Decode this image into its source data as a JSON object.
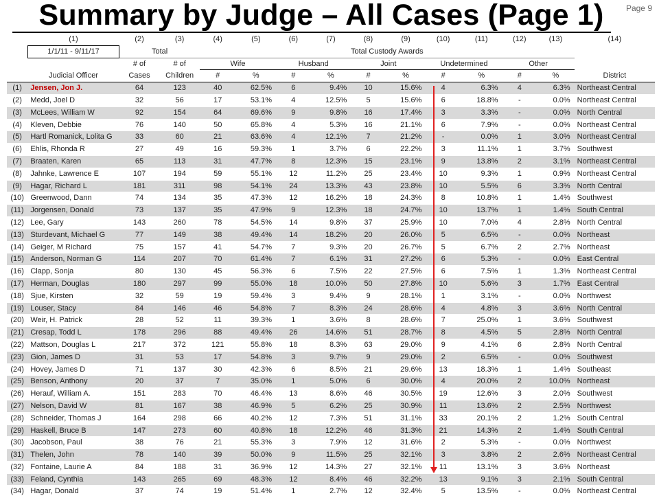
{
  "title": "Summary by Judge – All Cases (Page 1)",
  "page": "Page 9",
  "column_numbers": [
    "(1)",
    "(2)",
    "(3)",
    "(4)",
    "(5)",
    "(6)",
    "(7)",
    "(8)",
    "(9)",
    "(10)",
    "(11)",
    "(12)",
    "(13)",
    "(14)"
  ],
  "date_range": "1/1/11 - 9/11/17",
  "total_label": "Total",
  "awards_label": "Total Custody Awards",
  "groups": [
    "Wife",
    "Husband",
    "Joint",
    "Undetermined",
    "Other"
  ],
  "header": {
    "officer": "Judicial Officer",
    "cases_top": "# of",
    "cases_bottom": "Cases",
    "children_top": "# of",
    "children_bottom": "Children",
    "num": "#",
    "pct": "%",
    "district": "District"
  },
  "rows": [
    [
      "(1)",
      "Jensen, Jon J.",
      "64",
      "123",
      "40",
      "62.5%",
      "6",
      "9.4%",
      "10",
      "15.6%",
      "4",
      "6.3%",
      "4",
      "6.3%",
      "Northeast Central"
    ],
    [
      "(2)",
      "Medd, Joel D",
      "32",
      "56",
      "17",
      "53.1%",
      "4",
      "12.5%",
      "5",
      "15.6%",
      "6",
      "18.8%",
      "-",
      "0.0%",
      "Northeast Central"
    ],
    [
      "(3)",
      "McLees, William W",
      "92",
      "154",
      "64",
      "69.6%",
      "9",
      "9.8%",
      "16",
      "17.4%",
      "3",
      "3.3%",
      "-",
      "0.0%",
      "North Central"
    ],
    [
      "(4)",
      "Kleven, Debbie",
      "76",
      "140",
      "50",
      "65.8%",
      "4",
      "5.3%",
      "16",
      "21.1%",
      "6",
      "7.9%",
      "-",
      "0.0%",
      "Northeast Central"
    ],
    [
      "(5)",
      "Hartl Romanick, Lolita G",
      "33",
      "60",
      "21",
      "63.6%",
      "4",
      "12.1%",
      "7",
      "21.2%",
      "-",
      "0.0%",
      "1",
      "3.0%",
      "Northeast Central"
    ],
    [
      "(6)",
      "Ehlis, Rhonda R",
      "27",
      "49",
      "16",
      "59.3%",
      "1",
      "3.7%",
      "6",
      "22.2%",
      "3",
      "11.1%",
      "1",
      "3.7%",
      "Southwest"
    ],
    [
      "(7)",
      "Braaten, Karen",
      "65",
      "113",
      "31",
      "47.7%",
      "8",
      "12.3%",
      "15",
      "23.1%",
      "9",
      "13.8%",
      "2",
      "3.1%",
      "Northeast Central"
    ],
    [
      "(8)",
      "Jahnke, Lawrence E",
      "107",
      "194",
      "59",
      "55.1%",
      "12",
      "11.2%",
      "25",
      "23.4%",
      "10",
      "9.3%",
      "1",
      "0.9%",
      "Northeast Central"
    ],
    [
      "(9)",
      "Hagar, Richard L",
      "181",
      "311",
      "98",
      "54.1%",
      "24",
      "13.3%",
      "43",
      "23.8%",
      "10",
      "5.5%",
      "6",
      "3.3%",
      "North Central"
    ],
    [
      "(10)",
      "Greenwood, Dann",
      "74",
      "134",
      "35",
      "47.3%",
      "12",
      "16.2%",
      "18",
      "24.3%",
      "8",
      "10.8%",
      "1",
      "1.4%",
      "Southwest"
    ],
    [
      "(11)",
      "Jorgensen, Donald",
      "73",
      "137",
      "35",
      "47.9%",
      "9",
      "12.3%",
      "18",
      "24.7%",
      "10",
      "13.7%",
      "1",
      "1.4%",
      "South Central"
    ],
    [
      "(12)",
      "Lee, Gary",
      "143",
      "260",
      "78",
      "54.5%",
      "14",
      "9.8%",
      "37",
      "25.9%",
      "10",
      "7.0%",
      "4",
      "2.8%",
      "North Central"
    ],
    [
      "(13)",
      "Sturdevant, Michael G",
      "77",
      "149",
      "38",
      "49.4%",
      "14",
      "18.2%",
      "20",
      "26.0%",
      "5",
      "6.5%",
      "-",
      "0.0%",
      "Northeast"
    ],
    [
      "(14)",
      "Geiger, M Richard",
      "75",
      "157",
      "41",
      "54.7%",
      "7",
      "9.3%",
      "20",
      "26.7%",
      "5",
      "6.7%",
      "2",
      "2.7%",
      "Northeast"
    ],
    [
      "(15)",
      "Anderson, Norman G",
      "114",
      "207",
      "70",
      "61.4%",
      "7",
      "6.1%",
      "31",
      "27.2%",
      "6",
      "5.3%",
      "-",
      "0.0%",
      "East Central"
    ],
    [
      "(16)",
      "Clapp, Sonja",
      "80",
      "130",
      "45",
      "56.3%",
      "6",
      "7.5%",
      "22",
      "27.5%",
      "6",
      "7.5%",
      "1",
      "1.3%",
      "Northeast Central"
    ],
    [
      "(17)",
      "Herman, Douglas",
      "180",
      "297",
      "99",
      "55.0%",
      "18",
      "10.0%",
      "50",
      "27.8%",
      "10",
      "5.6%",
      "3",
      "1.7%",
      "East Central"
    ],
    [
      "(18)",
      "Sjue, Kirsten",
      "32",
      "59",
      "19",
      "59.4%",
      "3",
      "9.4%",
      "9",
      "28.1%",
      "1",
      "3.1%",
      "-",
      "0.0%",
      "Northwest"
    ],
    [
      "(19)",
      "Louser, Stacy",
      "84",
      "146",
      "46",
      "54.8%",
      "7",
      "8.3%",
      "24",
      "28.6%",
      "4",
      "4.8%",
      "3",
      "3.6%",
      "North Central"
    ],
    [
      "(20)",
      "Weir, H. Patrick",
      "28",
      "52",
      "11",
      "39.3%",
      "1",
      "3.6%",
      "8",
      "28.6%",
      "7",
      "25.0%",
      "1",
      "3.6%",
      "Southwest"
    ],
    [
      "(21)",
      "Cresap, Todd L",
      "178",
      "296",
      "88",
      "49.4%",
      "26",
      "14.6%",
      "51",
      "28.7%",
      "8",
      "4.5%",
      "5",
      "2.8%",
      "North Central"
    ],
    [
      "(22)",
      "Mattson, Douglas L",
      "217",
      "372",
      "121",
      "55.8%",
      "18",
      "8.3%",
      "63",
      "29.0%",
      "9",
      "4.1%",
      "6",
      "2.8%",
      "North Central"
    ],
    [
      "(23)",
      "Gion, James D",
      "31",
      "53",
      "17",
      "54.8%",
      "3",
      "9.7%",
      "9",
      "29.0%",
      "2",
      "6.5%",
      "-",
      "0.0%",
      "Southwest"
    ],
    [
      "(24)",
      "Hovey, James D",
      "71",
      "137",
      "30",
      "42.3%",
      "6",
      "8.5%",
      "21",
      "29.6%",
      "13",
      "18.3%",
      "1",
      "1.4%",
      "Southeast"
    ],
    [
      "(25)",
      "Benson, Anthony",
      "20",
      "37",
      "7",
      "35.0%",
      "1",
      "5.0%",
      "6",
      "30.0%",
      "4",
      "20.0%",
      "2",
      "10.0%",
      "Northeast"
    ],
    [
      "(26)",
      "Herauf, William A.",
      "151",
      "283",
      "70",
      "46.4%",
      "13",
      "8.6%",
      "46",
      "30.5%",
      "19",
      "12.6%",
      "3",
      "2.0%",
      "Southwest"
    ],
    [
      "(27)",
      "Nelson, David W",
      "81",
      "167",
      "38",
      "46.9%",
      "5",
      "6.2%",
      "25",
      "30.9%",
      "11",
      "13.6%",
      "2",
      "2.5%",
      "Northwest"
    ],
    [
      "(28)",
      "Schneider, Thomas J",
      "164",
      "298",
      "66",
      "40.2%",
      "12",
      "7.3%",
      "51",
      "31.1%",
      "33",
      "20.1%",
      "2",
      "1.2%",
      "South Central"
    ],
    [
      "(29)",
      "Haskell, Bruce B",
      "147",
      "273",
      "60",
      "40.8%",
      "18",
      "12.2%",
      "46",
      "31.3%",
      "21",
      "14.3%",
      "2",
      "1.4%",
      "South Central"
    ],
    [
      "(30)",
      "Jacobson, Paul",
      "38",
      "76",
      "21",
      "55.3%",
      "3",
      "7.9%",
      "12",
      "31.6%",
      "2",
      "5.3%",
      "-",
      "0.0%",
      "Northwest"
    ],
    [
      "(31)",
      "Thelen, John",
      "78",
      "140",
      "39",
      "50.0%",
      "9",
      "11.5%",
      "25",
      "32.1%",
      "3",
      "3.8%",
      "2",
      "2.6%",
      "Northeast Central"
    ],
    [
      "(32)",
      "Fontaine, Laurie A",
      "84",
      "188",
      "31",
      "36.9%",
      "12",
      "14.3%",
      "27",
      "32.1%",
      "11",
      "13.1%",
      "3",
      "3.6%",
      "Northeast"
    ],
    [
      "(33)",
      "Feland, Cynthia",
      "143",
      "265",
      "69",
      "48.3%",
      "12",
      "8.4%",
      "46",
      "32.2%",
      "13",
      "9.1%",
      "3",
      "2.1%",
      "South Central"
    ],
    [
      "(34)",
      "Hagar, Donald",
      "37",
      "74",
      "19",
      "51.4%",
      "1",
      "2.7%",
      "12",
      "32.4%",
      "5",
      "13.5%",
      "-",
      "0.0%",
      "Northeast Central"
    ]
  ],
  "highlight_row": 0,
  "colors": {
    "shade": "#d9d9d9",
    "highlight": "#c00000",
    "arrow": "#e02020"
  }
}
